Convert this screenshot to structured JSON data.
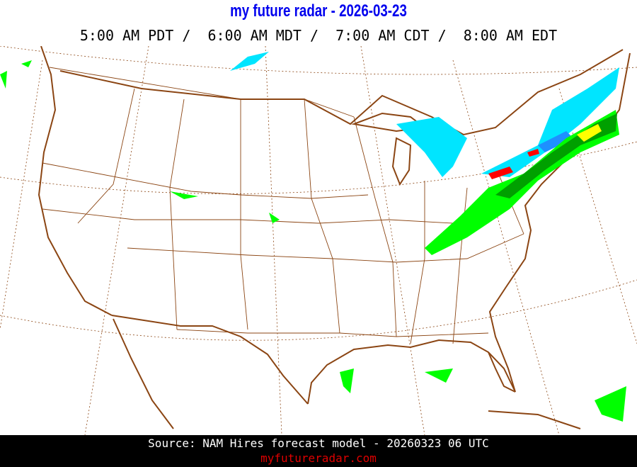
{
  "header": {
    "title": "my future radar - 2026-03-23",
    "times": "5:00 AM PDT /  6:00 AM MDT /  7:00 AM CDT /  8:00 AM EDT"
  },
  "map": {
    "region": "Continental United States",
    "layer": "forecast radar reflectivity",
    "colors": {
      "coastline": "#8b4513",
      "borders": "#8b4513",
      "graticule": "#8b4513",
      "rain_light": "#00ff00",
      "rain_moderate": "#00a000",
      "rain_heavy": "#ffff00",
      "snow": "#00e5ff",
      "snow_heavy": "#1e90ff",
      "mix": "#ff0000"
    }
  },
  "footer": {
    "source": "Source: NAM Hires forecast model - 20260323 06 UTC",
    "site": "myfutureradar.com"
  }
}
